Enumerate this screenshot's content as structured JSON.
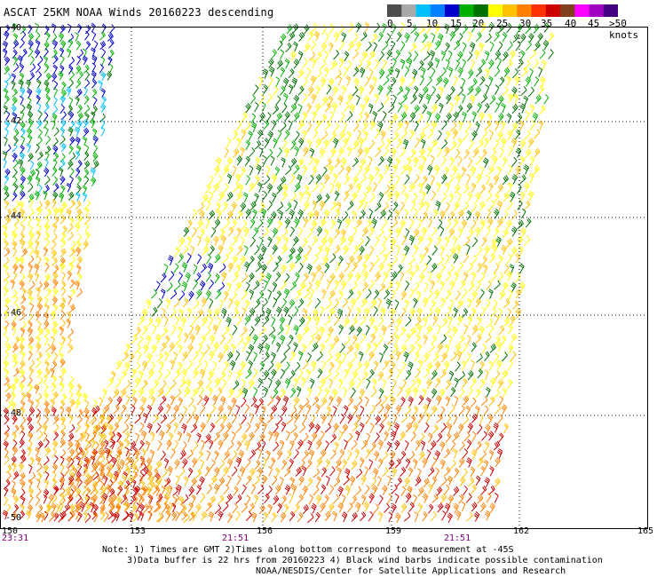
{
  "title": "ASCAT 25KM NOAA Winds 20160223 descending",
  "legend": {
    "colors": [
      "#4d4d4d",
      "#a9a9a9",
      "#00bfff",
      "#0080ff",
      "#0000cc",
      "#00b000",
      "#007000",
      "#ffff00",
      "#ffc000",
      "#ff8000",
      "#ff3000",
      "#cc0000",
      "#804020",
      "#ff00ff",
      "#a000c0",
      "#400080"
    ],
    "labels": [
      "0",
      "5",
      "10",
      "15",
      "20",
      "25",
      "30",
      "35",
      "40",
      "45",
      ">50 knots"
    ]
  },
  "latitude_labels": [
    "-40",
    "-42",
    "-44",
    "-46",
    "-48",
    "-50"
  ],
  "longitude_labels": [
    "150",
    "153",
    "156",
    "159",
    "162",
    "165"
  ],
  "time_labels": [
    "23:31",
    "21:51",
    "21:51"
  ],
  "notes": [
    "Note: 1) Times are GMT 2)Times along bottom correspond to measurement at -45S",
    "3)Data buffer is 22 hrs from 20160223 4) Black wind barbs indicate possible contamination",
    "NOAA/NESDIS/Center for Satellite Applications and Research"
  ],
  "swaths": [
    {
      "name": "left-swath",
      "colors": [
        "#0000cc",
        "#00b000",
        "#007000",
        "#00bfff",
        "#ffff00",
        "#ffc000",
        "#ff8000",
        "#cc0000"
      ]
    },
    {
      "name": "right-swath",
      "colors": [
        "#ffff00",
        "#ffc000",
        "#007000",
        "#00b000",
        "#ff8000",
        "#0000cc",
        "#cc0000"
      ]
    }
  ]
}
